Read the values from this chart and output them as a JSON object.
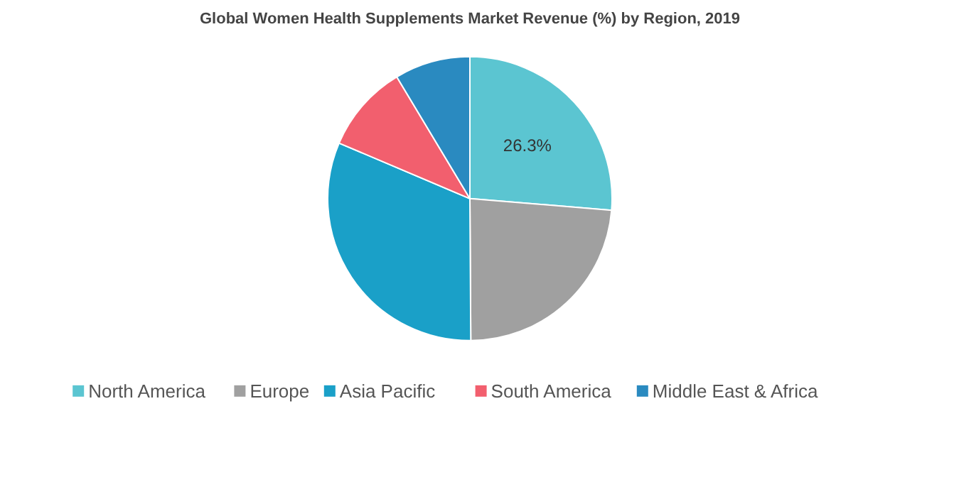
{
  "chart_data": {
    "type": "pie",
    "title": "Global Women Health Supplements Market Revenue (%) by Region, 2019",
    "categories": [
      "North America",
      "Europe",
      "Asia Pacific",
      "South America",
      "Middle East & Africa"
    ],
    "values": [
      26.3,
      23.6,
      31.5,
      10.0,
      8.6
    ],
    "colors": [
      "#5bc5d1",
      "#a0a0a0",
      "#1aa0c8",
      "#f25f6e",
      "#2a8ac0"
    ],
    "value_labels": [
      "26.3%",
      null,
      null,
      null,
      null
    ],
    "legend": "bottom"
  }
}
